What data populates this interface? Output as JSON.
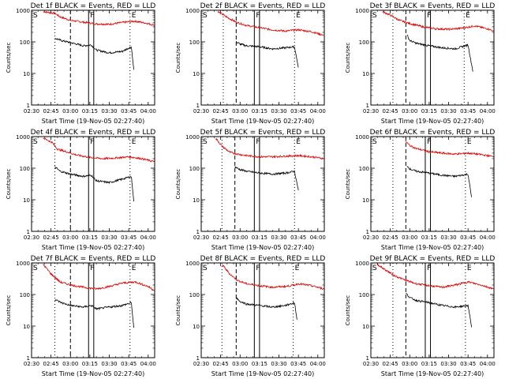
{
  "figure": {
    "xlabel": "Start Time (19-Nov-05 02:27:40)",
    "ylabel": "Counts/sec",
    "x_ticks": [
      "02:30",
      "02:45",
      "03:00",
      "03:15",
      "03:30",
      "03:45",
      "04:00"
    ],
    "y_ticks": [
      "1",
      "10",
      "100",
      "1000"
    ],
    "colors": {
      "events": "#000000",
      "lld": "#dd0000",
      "axes": "#000000"
    }
  },
  "chart_data": [
    {
      "type": "line",
      "title": "Det 1f BLACK = Events, RED = LLD",
      "xlim": [
        "02:30",
        "04:05"
      ],
      "ylim": [
        1,
        1000
      ],
      "yscale": "log",
      "markers": [
        {
          "x": "02:30",
          "style": "solid",
          "label": "S"
        },
        {
          "x": "02:48",
          "style": "dotted",
          "label": ""
        },
        {
          "x": "03:00",
          "style": "dashed",
          "label": ""
        },
        {
          "x": "03:14",
          "style": "solid",
          "label": "F"
        },
        {
          "x": "03:18",
          "style": "solid",
          "label": ""
        },
        {
          "x": "03:46",
          "style": "dotted",
          "label": "E"
        }
      ],
      "series": [
        {
          "color": "#dd0000",
          "t0": "02:39",
          "t1": "04:05",
          "x": [
            "02:39",
            "02:48",
            "02:52",
            "03:00",
            "03:10",
            "03:20",
            "03:30",
            "03:40",
            "03:50",
            "04:00",
            "04:05"
          ],
          "y": [
            900,
            800,
            620,
            480,
            420,
            370,
            360,
            410,
            450,
            380,
            330
          ]
        },
        {
          "color": "#000000",
          "t0": "02:48",
          "t1": "03:49",
          "x": [
            "02:48",
            "02:53",
            "03:00",
            "03:10",
            "03:16",
            "03:20",
            "03:30",
            "03:40",
            "03:47",
            "03:49"
          ],
          "y": [
            130,
            110,
            95,
            75,
            80,
            55,
            45,
            50,
            70,
            12
          ]
        }
      ]
    },
    {
      "type": "line",
      "title": "Det 2f BLACK = Events, RED = LLD",
      "xlim": [
        "02:30",
        "04:05"
      ],
      "ylim": [
        1,
        1000
      ],
      "yscale": "log",
      "markers": [
        {
          "x": "02:30",
          "style": "solid",
          "label": "S"
        },
        {
          "x": "02:47",
          "style": "dotted",
          "label": ""
        },
        {
          "x": "02:57",
          "style": "dashed",
          "label": ""
        },
        {
          "x": "03:11",
          "style": "solid",
          "label": "F"
        },
        {
          "x": "03:15",
          "style": "solid",
          "label": ""
        },
        {
          "x": "03:42",
          "style": "dotted",
          "label": "E"
        }
      ],
      "series": [
        {
          "color": "#dd0000",
          "t0": "02:43",
          "t1": "04:05",
          "x": [
            "02:43",
            "02:50",
            "02:57",
            "03:05",
            "03:15",
            "03:25",
            "03:35",
            "03:45",
            "03:55",
            "04:05"
          ],
          "y": [
            900,
            600,
            420,
            330,
            280,
            240,
            220,
            240,
            210,
            160
          ]
        },
        {
          "color": "#000000",
          "t0": "02:57",
          "t1": "03:45",
          "x": [
            "02:57",
            "03:00",
            "03:05",
            "03:15",
            "03:25",
            "03:35",
            "03:42",
            "03:45"
          ],
          "y": [
            100,
            85,
            75,
            70,
            60,
            65,
            70,
            15
          ]
        }
      ]
    },
    {
      "type": "line",
      "title": "Det 3f BLACK = Events, RED = LLD",
      "xlim": [
        "02:30",
        "04:05"
      ],
      "ylim": [
        1,
        1000
      ],
      "yscale": "log",
      "markers": [
        {
          "x": "02:30",
          "style": "solid",
          "label": "S"
        },
        {
          "x": "02:47",
          "style": "dotted",
          "label": ""
        },
        {
          "x": "02:57",
          "style": "dashed",
          "label": ""
        },
        {
          "x": "03:12",
          "style": "solid",
          "label": "F"
        },
        {
          "x": "03:16",
          "style": "solid",
          "label": ""
        },
        {
          "x": "03:42",
          "style": "dotted",
          "label": "E"
        }
      ],
      "series": [
        {
          "color": "#dd0000",
          "t0": "02:39",
          "t1": "04:05",
          "x": [
            "02:39",
            "02:45",
            "02:52",
            "03:00",
            "03:10",
            "03:20",
            "03:30",
            "03:40",
            "03:50",
            "04:00",
            "04:05"
          ],
          "y": [
            900,
            700,
            480,
            380,
            300,
            260,
            250,
            270,
            320,
            260,
            220
          ]
        },
        {
          "color": "#000000",
          "t0": "02:58",
          "t1": "03:49",
          "x": [
            "02:58",
            "03:00",
            "03:05",
            "03:15",
            "03:25",
            "03:35",
            "03:45",
            "03:49"
          ],
          "y": [
            160,
            110,
            90,
            75,
            65,
            60,
            80,
            10
          ]
        }
      ]
    },
    {
      "type": "line",
      "title": "Det 4f BLACK = Events, RED = LLD",
      "xlim": [
        "02:30",
        "04:05"
      ],
      "ylim": [
        1,
        1000
      ],
      "yscale": "log",
      "markers": [
        {
          "x": "02:30",
          "style": "solid",
          "label": "S"
        },
        {
          "x": "02:48",
          "style": "dotted",
          "label": ""
        },
        {
          "x": "03:00",
          "style": "dashed",
          "label": ""
        },
        {
          "x": "03:14",
          "style": "solid",
          "label": "F"
        },
        {
          "x": "03:18",
          "style": "solid",
          "label": ""
        },
        {
          "x": "03:46",
          "style": "dotted",
          "label": "E"
        }
      ],
      "series": [
        {
          "color": "#dd0000",
          "t0": "02:39",
          "t1": "04:05",
          "x": [
            "02:39",
            "02:46",
            "02:50",
            "02:57",
            "03:05",
            "03:15",
            "03:25",
            "03:35",
            "03:45",
            "03:55",
            "04:05"
          ],
          "y": [
            900,
            650,
            400,
            330,
            260,
            220,
            200,
            210,
            230,
            200,
            160
          ]
        },
        {
          "color": "#000000",
          "t0": "02:48",
          "t1": "03:49",
          "x": [
            "02:48",
            "02:52",
            "03:00",
            "03:10",
            "03:16",
            "03:20",
            "03:30",
            "03:40",
            "03:47",
            "03:49"
          ],
          "y": [
            110,
            80,
            65,
            55,
            60,
            40,
            35,
            45,
            55,
            8
          ]
        }
      ]
    },
    {
      "type": "line",
      "title": "Det 5f BLACK = Events, RED = LLD",
      "xlim": [
        "02:30",
        "04:05"
      ],
      "ylim": [
        1,
        1000
      ],
      "yscale": "log",
      "markers": [
        {
          "x": "02:30",
          "style": "solid",
          "label": "S"
        },
        {
          "x": "02:46",
          "style": "dotted",
          "label": ""
        },
        {
          "x": "02:56",
          "style": "dashed",
          "label": ""
        },
        {
          "x": "03:11",
          "style": "solid",
          "label": "F"
        },
        {
          "x": "03:15",
          "style": "solid",
          "label": ""
        },
        {
          "x": "03:42",
          "style": "dotted",
          "label": "E"
        }
      ],
      "series": [
        {
          "color": "#dd0000",
          "t0": "02:41",
          "t1": "04:05",
          "x": [
            "02:41",
            "02:46",
            "02:52",
            "02:58",
            "03:05",
            "03:15",
            "03:25",
            "03:35",
            "03:45",
            "03:55",
            "04:05"
          ],
          "y": [
            900,
            500,
            320,
            280,
            250,
            230,
            230,
            240,
            250,
            230,
            200
          ]
        },
        {
          "color": "#000000",
          "t0": "02:56",
          "t1": "03:45",
          "x": [
            "02:56",
            "03:00",
            "03:05",
            "03:15",
            "03:25",
            "03:35",
            "03:42",
            "03:45"
          ],
          "y": [
            110,
            90,
            80,
            70,
            65,
            70,
            80,
            20
          ]
        }
      ]
    },
    {
      "type": "line",
      "title": "Det 6f BLACK = Events, RED = LLD",
      "xlim": [
        "02:30",
        "04:05"
      ],
      "ylim": [
        1,
        1000
      ],
      "yscale": "log",
      "markers": [
        {
          "x": "02:30",
          "style": "solid",
          "label": "S"
        },
        {
          "x": "02:47",
          "style": "dotted",
          "label": ""
        },
        {
          "x": "02:57",
          "style": "dashed",
          "label": ""
        },
        {
          "x": "03:12",
          "style": "solid",
          "label": "F"
        },
        {
          "x": "03:16",
          "style": "solid",
          "label": ""
        },
        {
          "x": "03:43",
          "style": "dotted",
          "label": "E"
        }
      ],
      "series": [
        {
          "color": "#dd0000",
          "t0": "02:57",
          "t1": "04:05",
          "x": [
            "02:57",
            "03:00",
            "03:05",
            "03:15",
            "03:25",
            "03:35",
            "03:45",
            "03:55",
            "04:05"
          ],
          "y": [
            700,
            520,
            420,
            330,
            300,
            280,
            300,
            270,
            230
          ]
        },
        {
          "color": "#000000",
          "t0": "02:58",
          "t1": "03:48",
          "x": [
            "02:58",
            "03:00",
            "03:05",
            "03:15",
            "03:25",
            "03:35",
            "03:45",
            "03:48"
          ],
          "y": [
            120,
            95,
            80,
            70,
            60,
            55,
            65,
            10
          ]
        }
      ]
    },
    {
      "type": "line",
      "title": "Det 7f BLACK = Events, RED = LLD",
      "xlim": [
        "02:30",
        "04:05"
      ],
      "ylim": [
        1,
        1000
      ],
      "yscale": "log",
      "markers": [
        {
          "x": "02:30",
          "style": "solid",
          "label": "S"
        },
        {
          "x": "02:48",
          "style": "dotted",
          "label": ""
        },
        {
          "x": "03:00",
          "style": "dashed",
          "label": ""
        },
        {
          "x": "03:14",
          "style": "solid",
          "label": "F"
        },
        {
          "x": "03:18",
          "style": "solid",
          "label": ""
        },
        {
          "x": "03:46",
          "style": "dotted",
          "label": "E"
        }
      ],
      "series": [
        {
          "color": "#dd0000",
          "t0": "02:39",
          "t1": "04:05",
          "x": [
            "02:39",
            "02:45",
            "02:52",
            "03:00",
            "03:10",
            "03:20",
            "03:30",
            "03:40",
            "03:50",
            "04:00",
            "04:05"
          ],
          "y": [
            900,
            450,
            250,
            200,
            170,
            150,
            180,
            230,
            250,
            180,
            130
          ]
        },
        {
          "color": "#000000",
          "t0": "02:48",
          "t1": "03:49",
          "x": [
            "02:48",
            "02:53",
            "03:00",
            "03:10",
            "03:16",
            "03:20",
            "03:30",
            "03:40",
            "03:47",
            "03:49"
          ],
          "y": [
            70,
            55,
            45,
            40,
            45,
            35,
            40,
            45,
            55,
            8
          ]
        }
      ]
    },
    {
      "type": "line",
      "title": "Det 8f BLACK = Events, RED = LLD",
      "xlim": [
        "02:30",
        "04:05"
      ],
      "ylim": [
        1,
        1000
      ],
      "yscale": "log",
      "markers": [
        {
          "x": "02:30",
          "style": "solid",
          "label": "S"
        },
        {
          "x": "02:46",
          "style": "dotted",
          "label": ""
        },
        {
          "x": "02:57",
          "style": "dashed",
          "label": ""
        },
        {
          "x": "03:11",
          "style": "solid",
          "label": "F"
        },
        {
          "x": "03:15",
          "style": "solid",
          "label": ""
        },
        {
          "x": "03:41",
          "style": "dotted",
          "label": "E"
        }
      ],
      "series": [
        {
          "color": "#dd0000",
          "t0": "02:46",
          "t1": "04:05",
          "x": [
            "02:46",
            "02:52",
            "02:58",
            "03:05",
            "03:15",
            "03:25",
            "03:35",
            "03:42",
            "03:45",
            "03:55",
            "04:05"
          ],
          "y": [
            900,
            450,
            280,
            220,
            190,
            170,
            180,
            200,
            220,
            190,
            150
          ]
        },
        {
          "color": "#000000",
          "t0": "02:57",
          "t1": "03:44",
          "x": [
            "02:57",
            "03:00",
            "03:05",
            "03:15",
            "03:25",
            "03:35",
            "03:42",
            "03:44"
          ],
          "y": [
            80,
            60,
            50,
            45,
            40,
            45,
            55,
            15
          ]
        }
      ]
    },
    {
      "type": "line",
      "title": "Det 9f BLACK = Events, RED = LLD",
      "xlim": [
        "02:30",
        "04:05"
      ],
      "ylim": [
        1,
        1000
      ],
      "yscale": "log",
      "markers": [
        {
          "x": "02:30",
          "style": "solid",
          "label": "S"
        },
        {
          "x": "02:47",
          "style": "dotted",
          "label": ""
        },
        {
          "x": "02:57",
          "style": "dashed",
          "label": ""
        },
        {
          "x": "03:12",
          "style": "solid",
          "label": "F"
        },
        {
          "x": "03:16",
          "style": "solid",
          "label": ""
        },
        {
          "x": "03:43",
          "style": "dotted",
          "label": "E"
        }
      ],
      "series": [
        {
          "color": "#dd0000",
          "t0": "02:35",
          "t1": "04:05",
          "x": [
            "02:35",
            "02:40",
            "02:48",
            "02:57",
            "03:05",
            "03:15",
            "03:25",
            "03:35",
            "03:45",
            "03:55",
            "04:05"
          ],
          "y": [
            900,
            650,
            400,
            280,
            220,
            190,
            170,
            200,
            250,
            200,
            150
          ]
        },
        {
          "color": "#000000",
          "t0": "02:57",
          "t1": "03:48",
          "x": [
            "02:57",
            "03:00",
            "03:05",
            "03:15",
            "03:25",
            "03:35",
            "03:45",
            "03:48"
          ],
          "y": [
            110,
            80,
            65,
            55,
            45,
            40,
            45,
            8
          ]
        }
      ]
    }
  ]
}
